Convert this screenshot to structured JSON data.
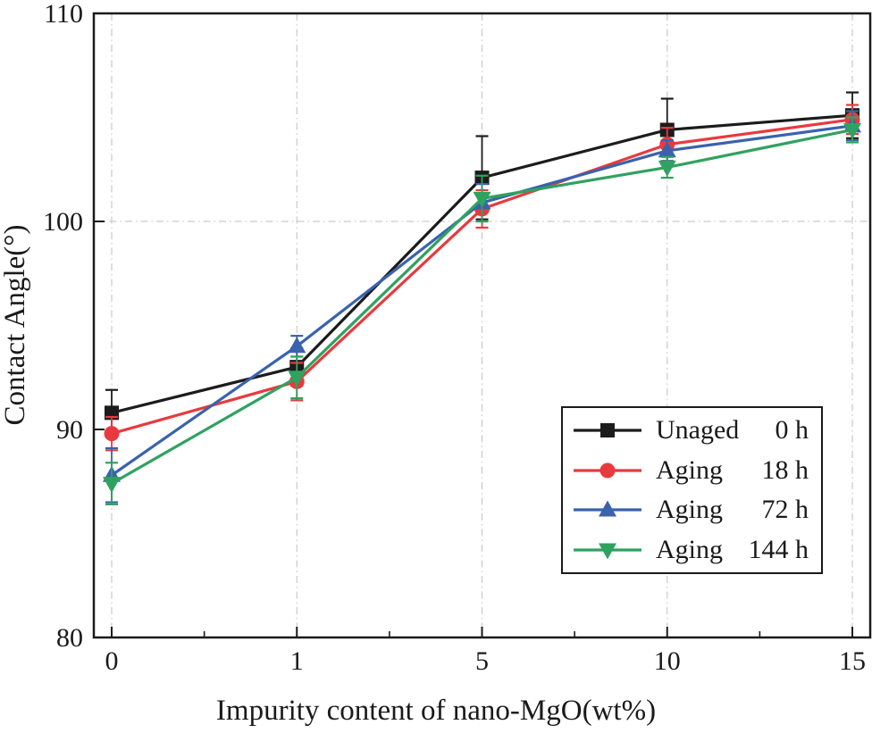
{
  "figure": {
    "background": "#ffffff",
    "frame_color": "#1a1a1a"
  },
  "chart_data": {
    "type": "line",
    "title": "",
    "xlabel": "Impurity content of nano-MgO(wt%)",
    "ylabel": "Contact Angle(°)",
    "x_values": [
      0,
      1,
      5,
      10,
      15
    ],
    "x_tick_labels": [
      "0",
      "1",
      "5",
      "10",
      "15"
    ],
    "y_ticks": [
      80,
      90,
      100,
      110
    ],
    "y_tick_labels": [
      "80",
      "90",
      "100",
      "110"
    ],
    "ylim": [
      80,
      110
    ],
    "grid": {
      "vertical_at_ticks": true,
      "horizontal_at": [
        100
      ],
      "style": "dash-dot",
      "color": "#c9c9c9"
    },
    "legend": {
      "position": "lower-right",
      "border_color": "#1a1a1a"
    },
    "series": [
      {
        "name": "Unaged 0 h",
        "legend_label": "Unaged",
        "legend_time": "0 h",
        "marker": "square",
        "color": "#1c1c1c",
        "values": [
          90.8,
          93.0,
          102.1,
          104.4,
          105.1
        ],
        "errors": [
          1.1,
          0.9,
          2.0,
          1.5,
          1.1
        ]
      },
      {
        "name": "Aging 18 h",
        "legend_label": "Aging",
        "legend_time": "18 h",
        "marker": "circle",
        "color": "#e83a3e",
        "values": [
          89.8,
          92.3,
          100.6,
          103.7,
          104.9
        ],
        "errors": [
          0.8,
          0.9,
          0.9,
          0.8,
          0.7
        ]
      },
      {
        "name": "Aging 72 h",
        "legend_label": "Aging",
        "legend_time": "72 h",
        "marker": "triangle-up",
        "color": "#3a62ad",
        "values": [
          87.8,
          94.0,
          100.9,
          103.4,
          104.6
        ],
        "errors": [
          1.3,
          0.5,
          0.9,
          0.5,
          0.7
        ]
      },
      {
        "name": "Aging 144 h",
        "legend_label": "Aging",
        "legend_time": "144 h",
        "marker": "triangle-down",
        "color": "#2fa25f",
        "values": [
          87.4,
          92.5,
          101.1,
          102.6,
          104.4
        ],
        "errors": [
          1.0,
          1.0,
          1.1,
          0.5,
          0.6
        ]
      }
    ]
  }
}
